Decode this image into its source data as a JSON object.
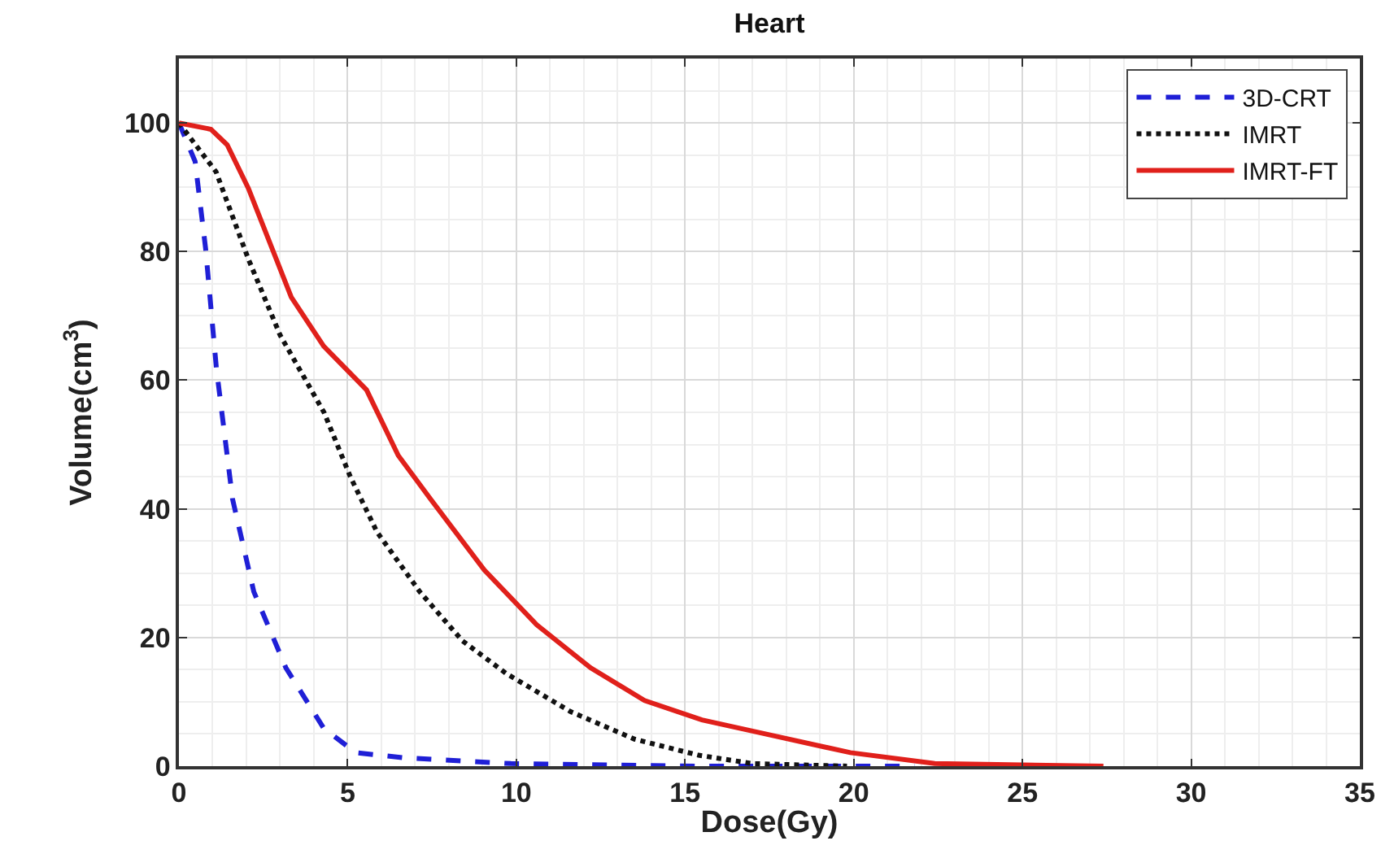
{
  "chart_data": {
    "type": "line",
    "title": "Heart",
    "xlabel": "Dose(Gy)",
    "ylabel": "Volume(cm$^{3}$)",
    "xlim": [
      0,
      35
    ],
    "xticks": [
      0,
      5,
      10,
      15,
      20,
      25,
      30,
      35
    ],
    "ylim": [
      0,
      110
    ],
    "yticks": [
      0,
      20,
      40,
      60,
      80,
      100
    ],
    "grid": true,
    "legend": "top right",
    "marker": "none",
    "series": [
      {
        "name": "3D-CRT",
        "color": "#1f1fd6",
        "line_style": "dashed",
        "x": [
          0,
          0.48,
          0.79,
          1.11,
          1.59,
          2.22,
          3.17,
          4.29,
          5.24,
          6.67,
          9.84,
          15.4,
          21.8
        ],
        "values": [
          100,
          94,
          80.5,
          61.9,
          41.5,
          27.1,
          15.3,
          5.9,
          2.1,
          1.3,
          0.4,
          0,
          0
        ]
      },
      {
        "name": "IMRT",
        "color": "#111111",
        "line_style": "dotted",
        "x": [
          0,
          1.1,
          2.06,
          3.0,
          4.3,
          5.08,
          5.87,
          7.14,
          8.4,
          9.7,
          11.6,
          13.5,
          15.4,
          17,
          19.8
        ],
        "values": [
          100,
          92.4,
          78.8,
          67,
          55,
          45,
          36.4,
          27.1,
          19.5,
          14.4,
          8.5,
          4.2,
          1.7,
          0.4,
          0
        ]
      },
      {
        "name": "IMRT-FT",
        "color": "#e0201b",
        "line_style": "solid",
        "x": [
          0,
          0.95,
          1.43,
          2.06,
          3.33,
          4.29,
          5.56,
          6.5,
          7.46,
          9.05,
          10.6,
          12.2,
          13.8,
          15.5,
          17.3,
          19.9,
          22.4,
          27.4
        ],
        "values": [
          100,
          99,
          96.6,
          89.8,
          72.9,
          65.3,
          58.5,
          48.3,
          41.5,
          30.5,
          22,
          15.3,
          10.2,
          7.2,
          5.1,
          2.1,
          0.4,
          0
        ]
      }
    ]
  }
}
